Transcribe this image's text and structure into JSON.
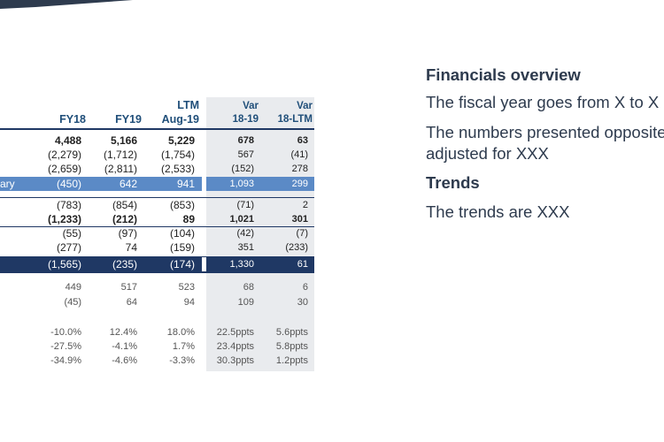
{
  "table": {
    "headers": [
      {
        "l1": "",
        "l2": "FY18"
      },
      {
        "l1": "",
        "l2": "FY19"
      },
      {
        "l1": "LTM",
        "l2": "Aug-19"
      },
      {
        "l1": "Var",
        "l2": "18-19"
      },
      {
        "l1": "Var",
        "l2": "18-LTM"
      }
    ],
    "rows": [
      {
        "label": "",
        "cells": [
          "4,488",
          "5,166",
          "5,229",
          "678",
          "63"
        ],
        "style": "bold"
      },
      {
        "label": "",
        "cells": [
          "(2,279)",
          "(1,712)",
          "(1,754)",
          "567",
          "(41)"
        ],
        "style": "normal"
      },
      {
        "label": "",
        "cells": [
          "(2,659)",
          "(2,811)",
          "(2,533)",
          "(152)",
          "278"
        ],
        "style": "normal"
      },
      {
        "label": "ary",
        "cells": [
          "(450)",
          "642",
          "941",
          "1,093",
          "299"
        ],
        "style": "band1"
      },
      {
        "label": "",
        "cells": [
          "(783)",
          "(854)",
          "(853)",
          "(71)",
          "2"
        ],
        "style": "normal"
      },
      {
        "label": "",
        "cells": [
          "(1,233)",
          "(212)",
          "89",
          "1,021",
          "301"
        ],
        "style": "bold"
      },
      {
        "label": "",
        "cells": [
          "(55)",
          "(97)",
          "(104)",
          "(42)",
          "(7)"
        ],
        "style": "normal"
      },
      {
        "label": "",
        "cells": [
          "(277)",
          "74",
          "(159)",
          "351",
          "(233)"
        ],
        "style": "normal"
      },
      {
        "label": "",
        "cells": [
          "(1,565)",
          "(235)",
          "(174)",
          "1,330",
          "61"
        ],
        "style": "band2"
      },
      {
        "label": "",
        "cells": [
          "449",
          "517",
          "523",
          "68",
          "6"
        ],
        "style": "gray"
      },
      {
        "label": "",
        "cells": [
          "(45)",
          "64",
          "94",
          "109",
          "30"
        ],
        "style": "gray"
      },
      {
        "label": "",
        "cells": [
          "-10.0%",
          "12.4%",
          "18.0%",
          "22.5ppts",
          "5.6ppts"
        ],
        "style": "gray"
      },
      {
        "label": "",
        "cells": [
          "-27.5%",
          "-4.1%",
          "1.7%",
          "23.4ppts",
          "5.8ppts"
        ],
        "style": "gray"
      },
      {
        "label": "",
        "cells": [
          "-34.9%",
          "-4.6%",
          "-3.3%",
          "30.3ppts",
          "1.2ppts"
        ],
        "style": "gray"
      }
    ]
  },
  "side": {
    "heading1": "Financials overview",
    "para1": "The fiscal year goes from X to X",
    "para2_line1": "The numbers presented opposite",
    "para2_line2": "adjusted for XXX",
    "heading2": "Trends",
    "para3": "The trends are XXX"
  },
  "colors": {
    "band1": "#5b8ac6",
    "band2": "#1f3864",
    "var_bg": "#e9ebee",
    "header_text": "#1f4e79"
  }
}
